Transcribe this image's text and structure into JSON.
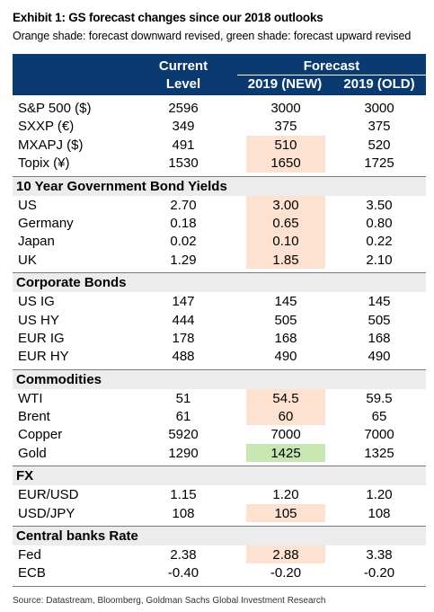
{
  "title": "Exhibit 1: GS forecast changes since our 2018 outlooks",
  "subtitle": "Orange shade: forecast downward revised, green shade: forecast upward revised",
  "header": {
    "current_line1": "Current",
    "current_line2": "Level",
    "forecast": "Forecast",
    "new": "2019 (NEW)",
    "old": "2019 (OLD)"
  },
  "colors": {
    "header_bg": "#0a3a6f",
    "down_shade": "#fde2d1",
    "up_shade": "#c8e6b0",
    "section_bg": "#ececec"
  },
  "groups": [
    {
      "title": "",
      "rows": [
        {
          "label": "S&P 500 ($)",
          "current": "2596",
          "new": "3000",
          "old": "3000",
          "shade": ""
        },
        {
          "label": "SXXP (€)",
          "current": "349",
          "new": "375",
          "old": "375",
          "shade": ""
        },
        {
          "label": "MXAPJ ($)",
          "current": "491",
          "new": "510",
          "old": "520",
          "shade": "down"
        },
        {
          "label": "Topix (¥)",
          "current": "1530",
          "new": "1650",
          "old": "1725",
          "shade": "down"
        }
      ]
    },
    {
      "title": "10 Year Government Bond Yields",
      "rows": [
        {
          "label": "US",
          "current": "2.70",
          "new": "3.00",
          "old": "3.50",
          "shade": "down"
        },
        {
          "label": "Germany",
          "current": "0.18",
          "new": "0.65",
          "old": "0.80",
          "shade": "down"
        },
        {
          "label": "Japan",
          "current": "0.02",
          "new": "0.10",
          "old": "0.22",
          "shade": "down"
        },
        {
          "label": "UK",
          "current": "1.29",
          "new": "1.85",
          "old": "2.10",
          "shade": "down"
        }
      ]
    },
    {
      "title": "Corporate Bonds",
      "rows": [
        {
          "label": "US IG",
          "current": "147",
          "new": "145",
          "old": "145",
          "shade": ""
        },
        {
          "label": "US HY",
          "current": "444",
          "new": "505",
          "old": "505",
          "shade": ""
        },
        {
          "label": "EUR IG",
          "current": "178",
          "new": "168",
          "old": "168",
          "shade": ""
        },
        {
          "label": "EUR HY",
          "current": "488",
          "new": "490",
          "old": "490",
          "shade": ""
        }
      ]
    },
    {
      "title": "Commodities",
      "rows": [
        {
          "label": "WTI",
          "current": "51",
          "new": "54.5",
          "old": "59.5",
          "shade": "down"
        },
        {
          "label": "Brent",
          "current": "61",
          "new": "60",
          "old": "65",
          "shade": "down"
        },
        {
          "label": "Copper",
          "current": "5920",
          "new": "7000",
          "old": "7000",
          "shade": ""
        },
        {
          "label": "Gold",
          "current": "1290",
          "new": "1425",
          "old": "1325",
          "shade": "up"
        }
      ]
    },
    {
      "title": "FX",
      "rows": [
        {
          "label": "EUR/USD",
          "current": "1.15",
          "new": "1.20",
          "old": "1.20",
          "shade": ""
        },
        {
          "label": "USD/JPY",
          "current": "108",
          "new": "105",
          "old": "108",
          "shade": "down"
        }
      ]
    },
    {
      "title": "Central banks Rate",
      "rows": [
        {
          "label": "Fed",
          "current": "2.38",
          "new": "2.88",
          "old": "3.38",
          "shade": "down"
        },
        {
          "label": "ECB",
          "current": "-0.40",
          "new": "-0.20",
          "old": "-0.20",
          "shade": ""
        }
      ]
    }
  ],
  "source": "Source: Datastream, Bloomberg, Goldman Sachs Global Investment Research"
}
